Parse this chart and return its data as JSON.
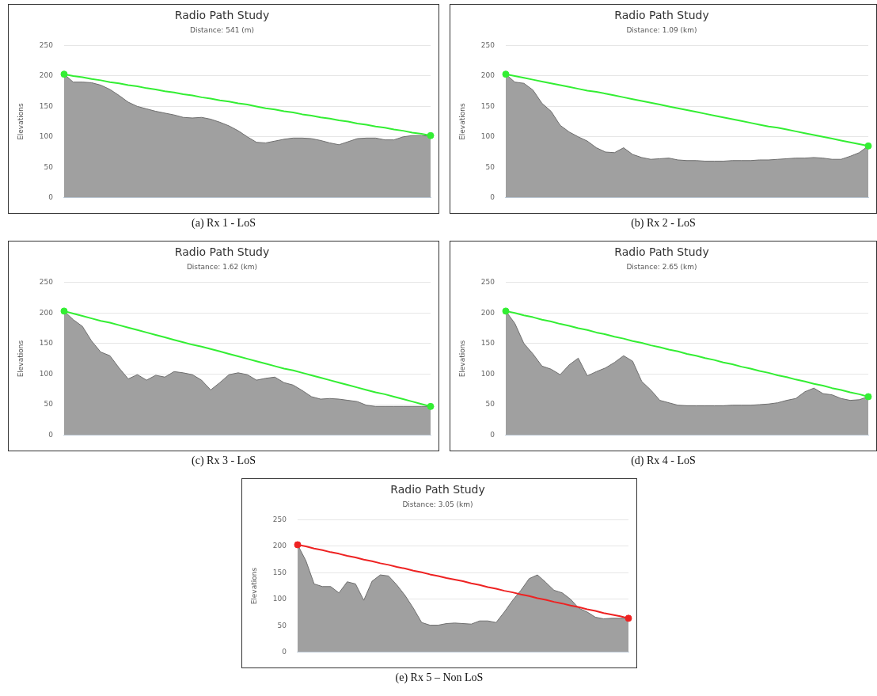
{
  "chart_data": [
    {
      "type": "area",
      "title": "Radio Path Study",
      "subtitle": "Distance: 541 (m)",
      "ylabel": "Elevations",
      "annotations": [
        "(a) Rx 1 - LoS"
      ],
      "ylim": [
        0,
        250
      ],
      "yticks": [
        0,
        50,
        100,
        150,
        200,
        250
      ],
      "grid": "y",
      "tick_labels": "y",
      "legend": false,
      "categories": [
        null,
        null,
        null,
        null,
        null,
        null,
        null,
        null,
        null,
        null,
        null,
        null,
        null,
        null,
        null,
        null,
        null,
        null,
        null,
        null,
        null,
        null,
        null,
        null,
        null,
        null,
        null,
        null,
        null,
        null,
        null,
        null,
        null,
        null,
        null,
        null,
        null,
        null,
        null,
        null,
        null
      ],
      "series": [
        {
          "type": "area",
          "color": "#a0a0a0",
          "marker": "none",
          "values": [
            203,
            190,
            190,
            189,
            185,
            178,
            168,
            157,
            150,
            146,
            142,
            139,
            136,
            132,
            131,
            132,
            129,
            124,
            118,
            110,
            100,
            91,
            90,
            93,
            96,
            98,
            98,
            97,
            94,
            90,
            87,
            92,
            97,
            98,
            98,
            95,
            95,
            100,
            102,
            102,
            101
          ]
        },
        {
          "type": "line",
          "color": "#33ee33",
          "marker": "none",
          "line_style": "solid",
          "values": [
            203,
            200,
            198,
            195,
            193,
            190,
            188,
            185,
            183,
            180,
            178,
            175,
            173,
            170,
            168,
            165,
            163,
            160,
            158,
            155,
            153,
            150,
            147,
            145,
            142,
            140,
            137,
            135,
            132,
            130,
            127,
            125,
            122,
            120,
            117,
            115,
            112,
            110,
            107,
            105,
            102
          ]
        },
        {
          "type": "scatter",
          "color": "#33ee33",
          "marker": "circle",
          "values": [
            203,
            null,
            null,
            null,
            null,
            null,
            null,
            null,
            null,
            null,
            null,
            null,
            null,
            null,
            null,
            null,
            null,
            null,
            null,
            null,
            null,
            null,
            null,
            null,
            null,
            null,
            null,
            null,
            null,
            null,
            null,
            null,
            null,
            null,
            null,
            null,
            null,
            null,
            null,
            null,
            102
          ]
        }
      ]
    },
    {
      "type": "area",
      "title": "Radio Path Study",
      "subtitle": "Distance: 1.09 (km)",
      "ylabel": "Elevations",
      "annotations": [
        "(b) Rx 2 - LoS"
      ],
      "ylim": [
        0,
        250
      ],
      "yticks": [
        0,
        50,
        100,
        150,
        200,
        250
      ],
      "grid": "y",
      "tick_labels": "y",
      "legend": false,
      "categories": [
        null,
        null,
        null,
        null,
        null,
        null,
        null,
        null,
        null,
        null,
        null,
        null,
        null,
        null,
        null,
        null,
        null,
        null,
        null,
        null,
        null,
        null,
        null,
        null,
        null,
        null,
        null,
        null,
        null,
        null,
        null,
        null,
        null,
        null,
        null,
        null,
        null,
        null,
        null,
        null,
        null
      ],
      "series": [
        {
          "type": "area",
          "color": "#a0a0a0",
          "marker": "none",
          "values": [
            203,
            190,
            188,
            177,
            155,
            142,
            119,
            108,
            100,
            93,
            82,
            75,
            74,
            82,
            71,
            66,
            63,
            64,
            65,
            62,
            61,
            61,
            60,
            60,
            60,
            61,
            61,
            61,
            62,
            62,
            63,
            64,
            65,
            65,
            66,
            65,
            63,
            63,
            68,
            74,
            85
          ]
        },
        {
          "type": "line",
          "color": "#33ee33",
          "marker": "none",
          "line_style": "solid",
          "values": [
            203,
            200,
            197,
            194,
            191,
            188,
            185,
            182,
            179,
            176,
            174,
            171,
            168,
            165,
            162,
            159,
            156,
            153,
            150,
            147,
            144,
            141,
            138,
            135,
            132,
            129,
            126,
            123,
            120,
            117,
            115,
            112,
            109,
            106,
            103,
            100,
            97,
            94,
            91,
            88,
            85
          ]
        },
        {
          "type": "scatter",
          "color": "#33ee33",
          "marker": "circle",
          "values": [
            203,
            null,
            null,
            null,
            null,
            null,
            null,
            null,
            null,
            null,
            null,
            null,
            null,
            null,
            null,
            null,
            null,
            null,
            null,
            null,
            null,
            null,
            null,
            null,
            null,
            null,
            null,
            null,
            null,
            null,
            null,
            null,
            null,
            null,
            null,
            null,
            null,
            null,
            null,
            null,
            85
          ]
        }
      ]
    },
    {
      "type": "area",
      "title": "Radio Path Study",
      "subtitle": "Distance: 1.62 (km)",
      "ylabel": "Elevations",
      "annotations": [
        "(c) Rx 3 - LoS"
      ],
      "ylim": [
        0,
        250
      ],
      "yticks": [
        0,
        50,
        100,
        150,
        200,
        250
      ],
      "grid": "y",
      "tick_labels": "y",
      "legend": false,
      "categories": [
        null,
        null,
        null,
        null,
        null,
        null,
        null,
        null,
        null,
        null,
        null,
        null,
        null,
        null,
        null,
        null,
        null,
        null,
        null,
        null,
        null,
        null,
        null,
        null,
        null,
        null,
        null,
        null,
        null,
        null,
        null,
        null,
        null,
        null,
        null,
        null,
        null,
        null,
        null,
        null,
        null
      ],
      "series": [
        {
          "type": "area",
          "color": "#a0a0a0",
          "marker": "none",
          "values": [
            203,
            189,
            178,
            154,
            136,
            130,
            110,
            92,
            99,
            90,
            98,
            95,
            104,
            102,
            99,
            90,
            74,
            86,
            99,
            102,
            99,
            90,
            93,
            95,
            86,
            82,
            73,
            63,
            59,
            60,
            59,
            57,
            55,
            49,
            47,
            47,
            47,
            47,
            47,
            47,
            47
          ]
        },
        {
          "type": "line",
          "color": "#33ee33",
          "marker": "none",
          "line_style": "solid",
          "values": [
            203,
            199,
            195,
            191,
            187,
            184,
            180,
            176,
            172,
            168,
            164,
            160,
            156,
            152,
            148,
            145,
            141,
            137,
            133,
            129,
            125,
            121,
            117,
            113,
            109,
            106,
            102,
            98,
            94,
            90,
            86,
            82,
            78,
            74,
            70,
            67,
            63,
            59,
            55,
            51,
            47
          ]
        },
        {
          "type": "scatter",
          "color": "#33ee33",
          "marker": "circle",
          "values": [
            203,
            null,
            null,
            null,
            null,
            null,
            null,
            null,
            null,
            null,
            null,
            null,
            null,
            null,
            null,
            null,
            null,
            null,
            null,
            null,
            null,
            null,
            null,
            null,
            null,
            null,
            null,
            null,
            null,
            null,
            null,
            null,
            null,
            null,
            null,
            null,
            null,
            null,
            null,
            null,
            47
          ]
        }
      ]
    },
    {
      "type": "area",
      "title": "Radio Path Study",
      "subtitle": "Distance: 2.65 (km)",
      "ylabel": "Elevations",
      "annotations": [
        "(d) Rx 4 - LoS"
      ],
      "ylim": [
        0,
        250
      ],
      "yticks": [
        0,
        50,
        100,
        150,
        200,
        250
      ],
      "grid": "y",
      "tick_labels": "y",
      "legend": false,
      "categories": [
        null,
        null,
        null,
        null,
        null,
        null,
        null,
        null,
        null,
        null,
        null,
        null,
        null,
        null,
        null,
        null,
        null,
        null,
        null,
        null,
        null,
        null,
        null,
        null,
        null,
        null,
        null,
        null,
        null,
        null,
        null,
        null,
        null,
        null,
        null,
        null,
        null,
        null,
        null,
        null,
        null
      ],
      "series": [
        {
          "type": "area",
          "color": "#a0a0a0",
          "marker": "none",
          "values": [
            203,
            183,
            150,
            133,
            113,
            108,
            99,
            115,
            126,
            97,
            104,
            110,
            119,
            130,
            121,
            88,
            74,
            57,
            53,
            49,
            48,
            48,
            48,
            48,
            48,
            49,
            49,
            49,
            50,
            51,
            53,
            57,
            60,
            71,
            77,
            68,
            66,
            60,
            57,
            58,
            63
          ]
        },
        {
          "type": "line",
          "color": "#33ee33",
          "marker": "none",
          "line_style": "solid",
          "values": [
            203,
            200,
            196,
            193,
            189,
            186,
            182,
            179,
            175,
            172,
            168,
            165,
            161,
            158,
            154,
            151,
            147,
            144,
            140,
            137,
            133,
            130,
            126,
            123,
            119,
            116,
            112,
            109,
            105,
            102,
            98,
            95,
            91,
            88,
            84,
            81,
            77,
            74,
            70,
            67,
            63
          ]
        },
        {
          "type": "scatter",
          "color": "#33ee33",
          "marker": "circle",
          "values": [
            203,
            null,
            null,
            null,
            null,
            null,
            null,
            null,
            null,
            null,
            null,
            null,
            null,
            null,
            null,
            null,
            null,
            null,
            null,
            null,
            null,
            null,
            null,
            null,
            null,
            null,
            null,
            null,
            null,
            null,
            null,
            null,
            null,
            null,
            null,
            null,
            null,
            null,
            null,
            null,
            63
          ]
        }
      ]
    },
    {
      "type": "area",
      "title": "Radio Path Study",
      "subtitle": "Distance: 3.05 (km)",
      "ylabel": "Elevations",
      "annotations": [
        "(e) Rx 5 – Non LoS"
      ],
      "ylim": [
        0,
        250
      ],
      "yticks": [
        0,
        50,
        100,
        150,
        200,
        250
      ],
      "grid": "y",
      "tick_labels": "y",
      "legend": false,
      "categories": [
        null,
        null,
        null,
        null,
        null,
        null,
        null,
        null,
        null,
        null,
        null,
        null,
        null,
        null,
        null,
        null,
        null,
        null,
        null,
        null,
        null,
        null,
        null,
        null,
        null,
        null,
        null,
        null,
        null,
        null,
        null,
        null,
        null,
        null,
        null,
        null,
        null,
        null,
        null,
        null,
        null
      ],
      "series": [
        {
          "type": "area",
          "color": "#a0a0a0",
          "marker": "none",
          "values": [
            203,
            173,
            129,
            124,
            124,
            112,
            133,
            129,
            98,
            134,
            146,
            144,
            127,
            107,
            83,
            56,
            51,
            51,
            54,
            55,
            54,
            53,
            59,
            59,
            56,
            76,
            98,
            117,
            139,
            146,
            132,
            117,
            112,
            100,
            83,
            76,
            66,
            63,
            64,
            64,
            64
          ]
        },
        {
          "type": "line",
          "color": "#ee2222",
          "marker": "none",
          "line_style": "solid",
          "values": [
            203,
            200,
            196,
            193,
            189,
            186,
            182,
            179,
            175,
            172,
            168,
            165,
            161,
            158,
            154,
            151,
            147,
            144,
            140,
            137,
            134,
            130,
            127,
            123,
            120,
            116,
            113,
            109,
            106,
            102,
            99,
            95,
            92,
            88,
            85,
            81,
            78,
            74,
            71,
            68,
            64
          ]
        },
        {
          "type": "scatter",
          "color": "#ee2222",
          "marker": "circle",
          "values": [
            203,
            null,
            null,
            null,
            null,
            null,
            null,
            null,
            null,
            null,
            null,
            null,
            null,
            null,
            null,
            null,
            null,
            null,
            null,
            null,
            null,
            null,
            null,
            null,
            null,
            null,
            null,
            null,
            null,
            null,
            null,
            null,
            null,
            null,
            null,
            null,
            null,
            null,
            null,
            null,
            64
          ]
        }
      ]
    }
  ]
}
